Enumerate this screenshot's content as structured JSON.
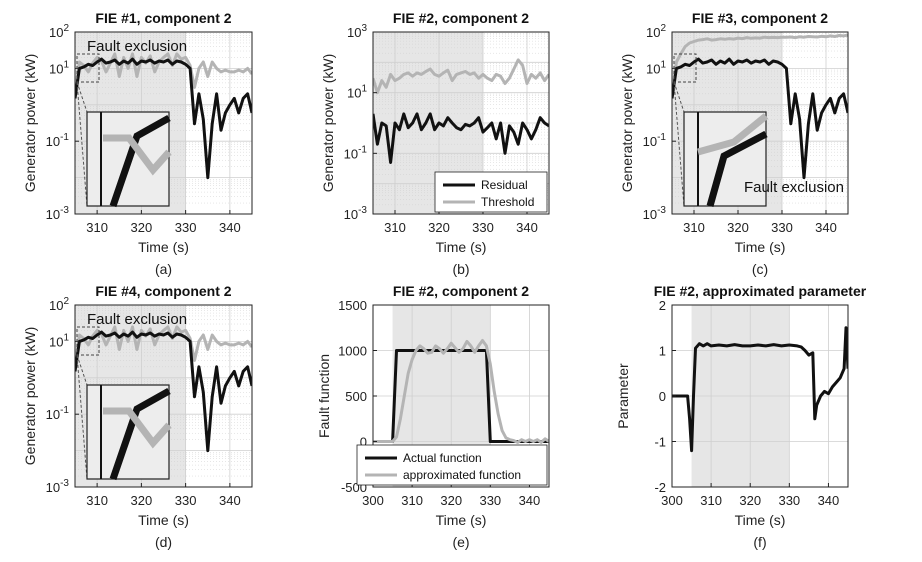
{
  "colors": {
    "residual": "#111111",
    "threshold": "#b4b4b4",
    "shade": "#e6e6e6",
    "grid": "#cfcfcf"
  },
  "chart_data": [
    {
      "type": "line",
      "title": "FIE #1, component 2",
      "caption": "(a)",
      "xlabel": "Time (s)",
      "ylabel": "Generator power (kW)",
      "xlim": [
        305,
        345
      ],
      "ylim_exp": [
        -3,
        2
      ],
      "yscale": "log",
      "xticks": [
        310,
        320,
        330,
        340
      ],
      "yticks": [
        {
          "e": -3,
          "label": "10^-3"
        },
        {
          "e": -1,
          "label": "10^-1"
        },
        {
          "e": 1,
          "label": "10^1"
        },
        {
          "e": 2,
          "label": "10^2"
        }
      ],
      "shade": [
        305,
        330
      ],
      "grid": true,
      "annotation": "Fault exclusion",
      "inset": true,
      "x": [
        305,
        306,
        307,
        308,
        309,
        310,
        311,
        312,
        313,
        314,
        315,
        316,
        317,
        318,
        319,
        320,
        321,
        322,
        323,
        324,
        325,
        326,
        327,
        328,
        329,
        330,
        331,
        332,
        333,
        334,
        335,
        336,
        337,
        338,
        339,
        340,
        341,
        342,
        343,
        344,
        345
      ],
      "series": [
        {
          "role": "threshold",
          "values": [
            2,
            15,
            12,
            8,
            14,
            20,
            16,
            8,
            14,
            25,
            6,
            20,
            10,
            25,
            6,
            20,
            14,
            22,
            8,
            15,
            20,
            25,
            12,
            25,
            18,
            20,
            12,
            3,
            10,
            15,
            6,
            15,
            10,
            8,
            9,
            8,
            8,
            9,
            8,
            10,
            7
          ]
        },
        {
          "role": "residual",
          "values": [
            1.5,
            10,
            11,
            13,
            12,
            15,
            18,
            14,
            15,
            17,
            13,
            16,
            14,
            18,
            13,
            16,
            15,
            17,
            14,
            16,
            15,
            17,
            13,
            16,
            15,
            13,
            10,
            0.3,
            2,
            0.4,
            0.01,
            0.3,
            2,
            0.2,
            0.6,
            1,
            1.5,
            0.6,
            1.5,
            2,
            0.6
          ]
        }
      ]
    },
    {
      "type": "line",
      "title": "FIE #2, component 2",
      "caption": "(b)",
      "xlabel": "Time (s)",
      "ylabel": "Generator power (kW)",
      "xlim": [
        305,
        345
      ],
      "ylim_exp": [
        -3,
        3
      ],
      "yscale": "log",
      "xticks": [
        310,
        320,
        330,
        340
      ],
      "yticks": [
        {
          "e": -3,
          "label": "10^-3"
        },
        {
          "e": -1,
          "label": "10^-1"
        },
        {
          "e": 1,
          "label": "10^1"
        },
        {
          "e": 3,
          "label": "10^3"
        }
      ],
      "shade": [
        305,
        330
      ],
      "grid": true,
      "legend": {
        "position": "bottom-right",
        "entries": [
          "Residual",
          "Threshold"
        ]
      },
      "x": [
        305,
        306,
        307,
        308,
        309,
        310,
        311,
        312,
        313,
        314,
        315,
        316,
        317,
        318,
        319,
        320,
        321,
        322,
        323,
        324,
        325,
        326,
        327,
        328,
        329,
        330,
        331,
        332,
        333,
        334,
        335,
        336,
        337,
        338,
        339,
        340,
        341,
        342,
        343,
        344,
        345
      ],
      "series": [
        {
          "role": "residual",
          "name": "Residual",
          "values": [
            2,
            0.2,
            1,
            0.8,
            0.05,
            1,
            0.6,
            2,
            0.7,
            1,
            2,
            0.6,
            1,
            2,
            0.6,
            1,
            0.8,
            1.5,
            1,
            0.7,
            0.6,
            0.9,
            0.8,
            1,
            1.5,
            0.5,
            0.7,
            1,
            0.3,
            1,
            0.1,
            0.8,
            0.5,
            0.2,
            1,
            0.6,
            0.3,
            0.6,
            1.5,
            1,
            0.8
          ]
        },
        {
          "role": "threshold",
          "name": "Threshold",
          "values": [
            30,
            10,
            25,
            15,
            40,
            25,
            30,
            40,
            45,
            35,
            45,
            40,
            50,
            60,
            40,
            35,
            45,
            55,
            25,
            40,
            45,
            50,
            40,
            45,
            30,
            40,
            30,
            25,
            40,
            35,
            20,
            30,
            60,
            120,
            80,
            20,
            40,
            30,
            45,
            25,
            40
          ]
        }
      ]
    },
    {
      "type": "line",
      "title": "FIE #3, component 2",
      "caption": "(c)",
      "xlabel": "Time (s)",
      "ylabel": "Generator power (kW)",
      "xlim": [
        305,
        345
      ],
      "ylim_exp": [
        -3,
        2
      ],
      "yscale": "log",
      "xticks": [
        310,
        320,
        330,
        340
      ],
      "yticks": [
        {
          "e": -3,
          "label": "10^-3"
        },
        {
          "e": -1,
          "label": "10^-1"
        },
        {
          "e": 1,
          "label": "10^1"
        },
        {
          "e": 2,
          "label": "10^2"
        }
      ],
      "shade": [
        305,
        330
      ],
      "grid": true,
      "annotation": "Fault exclusion",
      "inset": true,
      "x": [
        305,
        306,
        307,
        308,
        309,
        310,
        311,
        312,
        313,
        314,
        315,
        316,
        317,
        318,
        319,
        320,
        321,
        322,
        323,
        324,
        325,
        326,
        327,
        328,
        329,
        330,
        331,
        332,
        333,
        334,
        335,
        336,
        337,
        338,
        339,
        340,
        341,
        342,
        343,
        344,
        345
      ],
      "series": [
        {
          "role": "threshold",
          "values": [
            2,
            15,
            25,
            40,
            50,
            55,
            60,
            62,
            65,
            60,
            62,
            65,
            63,
            66,
            64,
            68,
            66,
            70,
            67,
            69,
            68,
            72,
            70,
            71,
            70,
            72,
            72,
            73,
            70,
            74,
            72,
            75,
            74,
            73,
            76,
            74,
            78,
            75,
            80,
            78,
            82
          ]
        },
        {
          "role": "residual",
          "values": [
            1.5,
            10,
            11,
            13,
            12,
            15,
            18,
            14,
            15,
            17,
            13,
            16,
            14,
            18,
            13,
            16,
            15,
            17,
            14,
            16,
            15,
            17,
            13,
            16,
            15,
            13,
            10,
            0.3,
            2,
            0.4,
            0.01,
            0.3,
            2,
            0.2,
            0.6,
            1,
            1.5,
            0.6,
            1.5,
            2,
            0.6
          ]
        }
      ]
    },
    {
      "type": "line",
      "title": "FIE #4, component 2",
      "caption": "(d)",
      "xlabel": "Time (s)",
      "ylabel": "Generator power (kW)",
      "xlim": [
        305,
        345
      ],
      "ylim_exp": [
        -3,
        2
      ],
      "yscale": "log",
      "xticks": [
        310,
        320,
        330,
        340
      ],
      "yticks": [
        {
          "e": -3,
          "label": "10^-3"
        },
        {
          "e": -1,
          "label": "10^-1"
        },
        {
          "e": 1,
          "label": "10^1"
        },
        {
          "e": 2,
          "label": "10^2"
        }
      ],
      "shade": [
        305,
        330
      ],
      "grid": true,
      "annotation": "Fault exclusion",
      "inset": true,
      "x": [
        305,
        306,
        307,
        308,
        309,
        310,
        311,
        312,
        313,
        314,
        315,
        316,
        317,
        318,
        319,
        320,
        321,
        322,
        323,
        324,
        325,
        326,
        327,
        328,
        329,
        330,
        331,
        332,
        333,
        334,
        335,
        336,
        337,
        338,
        339,
        340,
        341,
        342,
        343,
        344,
        345
      ],
      "series": [
        {
          "role": "threshold",
          "values": [
            2,
            15,
            12,
            8,
            14,
            20,
            16,
            8,
            14,
            25,
            6,
            20,
            10,
            25,
            6,
            20,
            14,
            22,
            8,
            15,
            20,
            25,
            12,
            25,
            18,
            20,
            12,
            3,
            10,
            15,
            6,
            15,
            10,
            8,
            9,
            8,
            8,
            9,
            8,
            10,
            7
          ]
        },
        {
          "role": "residual",
          "values": [
            1.5,
            10,
            11,
            13,
            12,
            15,
            18,
            14,
            15,
            17,
            13,
            16,
            14,
            18,
            13,
            16,
            15,
            17,
            14,
            16,
            15,
            17,
            13,
            16,
            15,
            13,
            10,
            0.3,
            2,
            0.4,
            0.01,
            0.3,
            2,
            0.2,
            0.6,
            1,
            1.5,
            0.6,
            1.5,
            2,
            0.6
          ]
        }
      ]
    },
    {
      "type": "line",
      "title": "FIE #2, component 2",
      "caption": "(e)",
      "xlabel": "Time (s)",
      "ylabel": "Fault function",
      "xlim": [
        300,
        345
      ],
      "ylim": [
        -500,
        1500
      ],
      "yscale": "linear",
      "xticks": [
        300,
        310,
        320,
        330,
        340
      ],
      "yticks": [
        {
          "v": -500,
          "label": "-500"
        },
        {
          "v": 0,
          "label": "0"
        },
        {
          "v": 500,
          "label": "500"
        },
        {
          "v": 1000,
          "label": "1000"
        },
        {
          "v": 1500,
          "label": "1500"
        }
      ],
      "shade": [
        305,
        330
      ],
      "grid": true,
      "legend": {
        "position": "bottom-right",
        "entries": [
          "Actual function",
          "approximated function"
        ]
      },
      "series": [
        {
          "role": "residual",
          "name": "Actual function",
          "x": [
            300,
            305,
            306,
            329,
            330,
            345
          ],
          "values": [
            0,
            0,
            1000,
            1000,
            0,
            0
          ]
        },
        {
          "role": "threshold",
          "name": "approximated function",
          "x": [
            300,
            305,
            306,
            307,
            308,
            309,
            310,
            311,
            312,
            313,
            314,
            315,
            316,
            317,
            318,
            319,
            320,
            321,
            322,
            323,
            324,
            325,
            326,
            327,
            328,
            329,
            330,
            331,
            332,
            333,
            334,
            335,
            336,
            337,
            338,
            339,
            340,
            341,
            342,
            343,
            344,
            345
          ],
          "values": [
            0,
            0,
            50,
            250,
            500,
            750,
            900,
            1000,
            1050,
            1020,
            970,
            980,
            1050,
            1020,
            970,
            1020,
            1080,
            1030,
            980,
            1020,
            1100,
            1050,
            980,
            1050,
            1110,
            1050,
            850,
            550,
            300,
            120,
            40,
            20,
            10,
            -10,
            20,
            0,
            20,
            0,
            20,
            -10,
            30,
            0
          ]
        }
      ]
    },
    {
      "type": "line",
      "title": "FIE #2, approximated parameter",
      "caption": "(f)",
      "xlabel": "Time (s)",
      "ylabel": "Parameter",
      "xlim": [
        300,
        345
      ],
      "ylim": [
        -2,
        2
      ],
      "yscale": "linear",
      "xticks": [
        300,
        310,
        320,
        330,
        340
      ],
      "yticks": [
        {
          "v": -2,
          "label": "-2"
        },
        {
          "v": -1,
          "label": "-1"
        },
        {
          "v": 0,
          "label": "0"
        },
        {
          "v": 1,
          "label": "1"
        },
        {
          "v": 2,
          "label": "2"
        }
      ],
      "shade": [
        305,
        330
      ],
      "grid": true,
      "series": [
        {
          "role": "residual",
          "x": [
            300,
            304,
            304.5,
            305,
            305.5,
            306,
            307,
            308,
            309,
            310,
            312,
            314,
            316,
            318,
            320,
            322,
            324,
            326,
            328,
            330,
            332,
            333,
            334,
            335,
            336,
            336.5,
            337,
            338,
            339,
            340,
            341,
            342,
            343,
            343.5,
            344,
            344.5,
            345
          ],
          "values": [
            0,
            0,
            -0.5,
            -1.2,
            0,
            1.05,
            1.15,
            1.1,
            1.15,
            1.1,
            1.12,
            1.1,
            1.13,
            1.1,
            1.1,
            1.12,
            1.1,
            1.13,
            1.1,
            1.12,
            1.1,
            1.08,
            1.0,
            0.9,
            0.95,
            -0.5,
            -0.2,
            0.0,
            0.1,
            0.05,
            0.2,
            0.3,
            0.4,
            0.5,
            0.6,
            1.5,
            0.6
          ]
        }
      ]
    }
  ]
}
